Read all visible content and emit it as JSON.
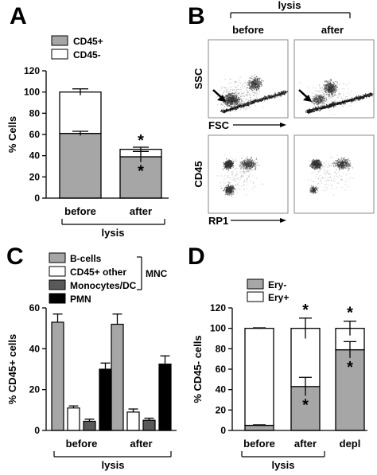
{
  "panels": {
    "A": {
      "letter": "A"
    },
    "B": {
      "letter": "B"
    },
    "C": {
      "letter": "C"
    },
    "D": {
      "letter": "D"
    }
  },
  "colors": {
    "gray": "#a6a6a6",
    "white": "#ffffff",
    "dark_gray": "#595959",
    "black": "#000000"
  },
  "chart_data": [
    {
      "id": "A",
      "type": "bar",
      "stacked": true,
      "categories": [
        "before",
        "after"
      ],
      "group_label": "lysis",
      "ylabel": "% Cells",
      "ylim": [
        0,
        120
      ],
      "yticks": [
        0,
        20,
        40,
        60,
        80,
        100,
        120
      ],
      "legend": [
        "CD45+",
        "CD45-"
      ],
      "series": [
        {
          "name": "CD45+",
          "color": "#a6a6a6",
          "values": [
            61,
            39
          ],
          "errors": [
            2,
            5
          ],
          "sig": [
            false,
            true
          ]
        },
        {
          "name": "CD45-",
          "color": "#ffffff",
          "values": [
            39,
            7
          ],
          "errors": [
            3,
            2
          ],
          "sig": [
            false,
            true
          ]
        }
      ],
      "sig_marker": "*"
    },
    {
      "id": "B",
      "type": "scatter",
      "group_label": "lysis",
      "columns": [
        "before",
        "after"
      ],
      "rows": [
        {
          "ylabel": "SSC",
          "xlabel": "FSC"
        },
        {
          "ylabel": "CD45",
          "xlabel": "RP1"
        }
      ]
    },
    {
      "id": "C",
      "type": "bar",
      "categories": [
        "before",
        "after"
      ],
      "group_label": "lysis",
      "ylabel": "% CD45+ cells",
      "ylim": [
        0,
        60
      ],
      "yticks": [
        0,
        20,
        40,
        60
      ],
      "legend": [
        "B-cells",
        "CD45+ other",
        "Monocytes/DC",
        "PMN"
      ],
      "legend_group": "MNC",
      "series": [
        {
          "name": "B-cells",
          "color": "#a6a6a6",
          "values": [
            53,
            52
          ],
          "errors": [
            4,
            5
          ]
        },
        {
          "name": "CD45+ other",
          "color": "#ffffff",
          "values": [
            11,
            9
          ],
          "errors": [
            1,
            1.5
          ]
        },
        {
          "name": "Monocytes/DC",
          "color": "#595959",
          "values": [
            4.5,
            5
          ],
          "errors": [
            1,
            1
          ]
        },
        {
          "name": "PMN",
          "color": "#000000",
          "values": [
            30,
            32.5
          ],
          "errors": [
            3,
            4
          ]
        }
      ]
    },
    {
      "id": "D",
      "type": "bar",
      "stacked": true,
      "categories": [
        "before",
        "after",
        "depl"
      ],
      "group_label": "lysis",
      "group_span": [
        0,
        1
      ],
      "ylabel": "% CD45- cells",
      "ylim": [
        0,
        120
      ],
      "yticks": [
        0,
        20,
        40,
        60,
        80,
        100,
        120
      ],
      "legend": [
        "Ery-",
        "Ery+"
      ],
      "series": [
        {
          "name": "Ery-",
          "color": "#a6a6a6",
          "values": [
            5,
            43,
            79
          ],
          "errors": [
            0.5,
            9,
            8
          ],
          "sig": [
            false,
            true,
            true
          ]
        },
        {
          "name": "Ery+",
          "color": "#ffffff",
          "values": [
            95,
            57,
            21
          ],
          "errors": [
            0.5,
            10,
            7
          ],
          "sig": [
            false,
            true,
            true
          ]
        }
      ],
      "sig_marker": "*"
    }
  ]
}
